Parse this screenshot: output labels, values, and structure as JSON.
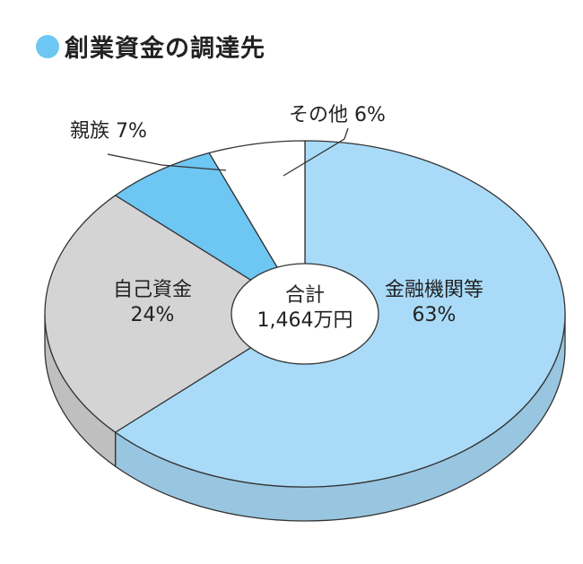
{
  "chart_data": {
    "type": "pie",
    "title": "創業資金の調達先",
    "center_label": {
      "line1": "合計",
      "line2": "1,464万円"
    },
    "slices": [
      {
        "label": "金融機関等",
        "value": 63,
        "value_text": "63%",
        "color": "#a9dbf8"
      },
      {
        "label": "自己資金",
        "value": 24,
        "value_text": "24%",
        "color": "#d4d4d4"
      },
      {
        "label": "親族",
        "value": 7,
        "value_text": "7%",
        "color": "#6ec6f3"
      },
      {
        "label": "その他",
        "value": 6,
        "value_text": "6%",
        "color": "#ffffff"
      }
    ]
  }
}
